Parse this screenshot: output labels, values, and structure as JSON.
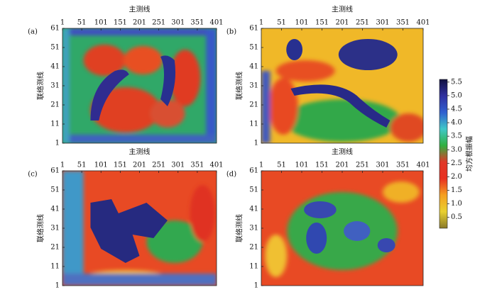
{
  "chart_data": [
    {
      "type": "heatmap",
      "label": "(a)",
      "x_label": "主测线",
      "y_label": "联络测线",
      "xlim": [
        1,
        401
      ],
      "ylim": [
        1,
        61
      ],
      "xticks": [
        1,
        51,
        101,
        151,
        201,
        251,
        301,
        351,
        401
      ],
      "yticks": [
        1,
        11,
        21,
        31,
        41,
        51,
        61
      ]
    },
    {
      "type": "heatmap",
      "label": "(b)",
      "x_label": "主测线",
      "y_label": "联络测线",
      "xlim": [
        1,
        401
      ],
      "ylim": [
        1,
        61
      ],
      "xticks": [
        1,
        51,
        101,
        151,
        201,
        251,
        301,
        351,
        401
      ],
      "yticks": [
        1,
        11,
        21,
        31,
        41,
        51,
        61
      ]
    },
    {
      "type": "heatmap",
      "label": "(c)",
      "x_label": "主测线",
      "y_label": "联络测线",
      "xlim": [
        1,
        401
      ],
      "ylim": [
        1,
        61
      ],
      "xticks": [
        1,
        51,
        101,
        151,
        201,
        251,
        301,
        351,
        401
      ],
      "yticks": [
        1,
        11,
        21,
        31,
        41,
        51,
        61
      ]
    },
    {
      "type": "heatmap",
      "label": "(d)",
      "x_label": "主测线",
      "y_label": "联络测线",
      "xlim": [
        1,
        401
      ],
      "ylim": [
        1,
        61
      ],
      "xticks": [
        1,
        51,
        101,
        151,
        201,
        251,
        301,
        351,
        401
      ],
      "yticks": [
        1,
        11,
        21,
        31,
        41,
        51,
        61
      ]
    }
  ],
  "colorbar": {
    "label": "均方根振幅",
    "lim": [
      0.1,
      5.6
    ],
    "ticks": [
      0.5,
      {
        "value": 1,
        "label": "1.0"
      },
      1.5,
      {
        "value": 2,
        "label": "2.0"
      },
      2.5,
      {
        "value": 3,
        "label": "3.0"
      },
      3.5,
      {
        "value": 4,
        "label": "4.0"
      },
      4.5,
      {
        "value": 5,
        "label": "5.0"
      },
      5.5
    ],
    "colors": [
      "#8a7a2a",
      "#e8d030",
      "#f5a020",
      "#e83020",
      "#e03828",
      "#30b040",
      "#40c8c8",
      "#3060d0",
      "#3030a0",
      "#101040"
    ]
  }
}
